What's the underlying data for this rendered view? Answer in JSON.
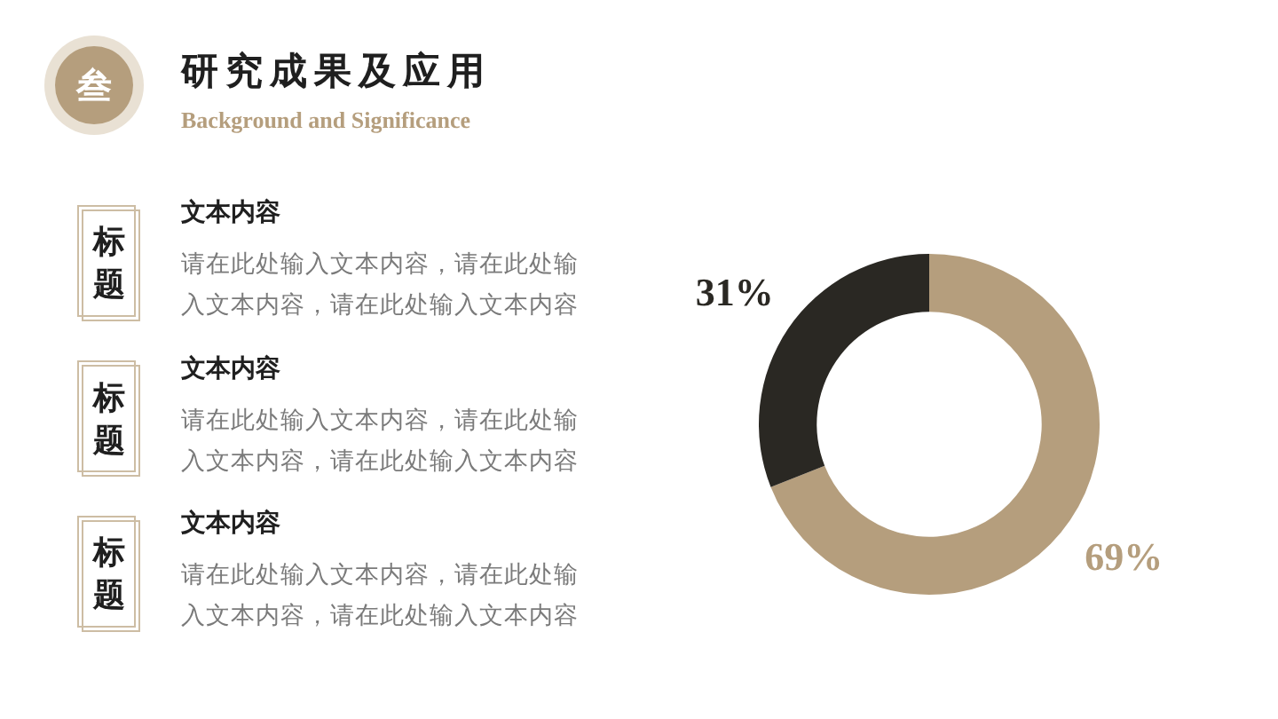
{
  "chart_data": {
    "type": "donut",
    "title": "研究成果及应用",
    "subtitle": "Background and Significance",
    "categories": [
      null,
      null
    ],
    "values": [
      69,
      31
    ],
    "colors": [
      "#b59e7d",
      "#2a2823"
    ],
    "value_labels": [
      "69%",
      "31%"
    ],
    "annotations": [
      "叁",
      "标题",
      "文本内容",
      "请在此处输入文本内容，请在此处输入文本内容，请在此处输入文本内容",
      "标题",
      "文本内容",
      "请在此处输入文本内容，请在此处输入文本内容，请在此处输入文本内容",
      "标题",
      "文本内容",
      "请在此处输入文本内容，请在此处输入文本内容，请在此处输入文本内容"
    ]
  }
}
